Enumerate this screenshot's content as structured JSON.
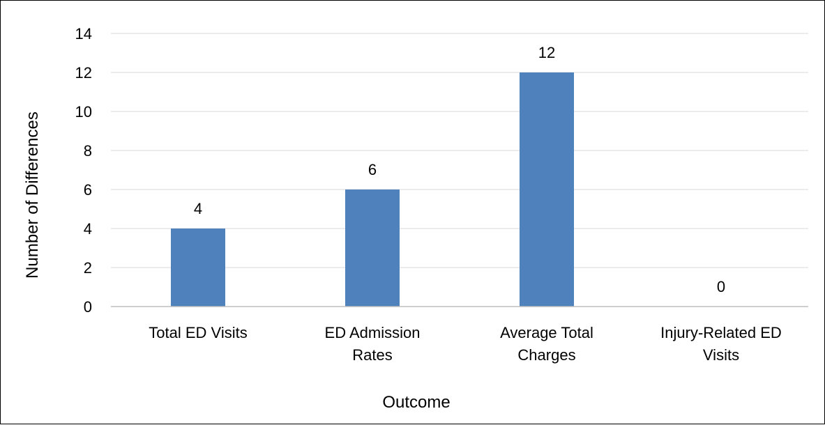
{
  "chart_data": {
    "type": "bar",
    "categories": [
      [
        "Total ED Visits"
      ],
      [
        "ED Admission",
        "Rates"
      ],
      [
        "Average Total",
        "Charges"
      ],
      [
        "Injury-Related ED",
        "Visits"
      ]
    ],
    "values": [
      4,
      6,
      12,
      0
    ],
    "data_labels": [
      "4",
      "6",
      "12",
      "0"
    ],
    "title": "",
    "xlabel": "Outcome",
    "ylabel": "Number of Differences",
    "ylim": [
      0,
      14
    ],
    "yticks": [
      0,
      2,
      4,
      6,
      8,
      10,
      12,
      14
    ],
    "grid": true,
    "legend": "none",
    "colors": {
      "bar": "#4F81BD",
      "grid": "#D9D9D9",
      "axis": "#BFBFBF"
    }
  }
}
